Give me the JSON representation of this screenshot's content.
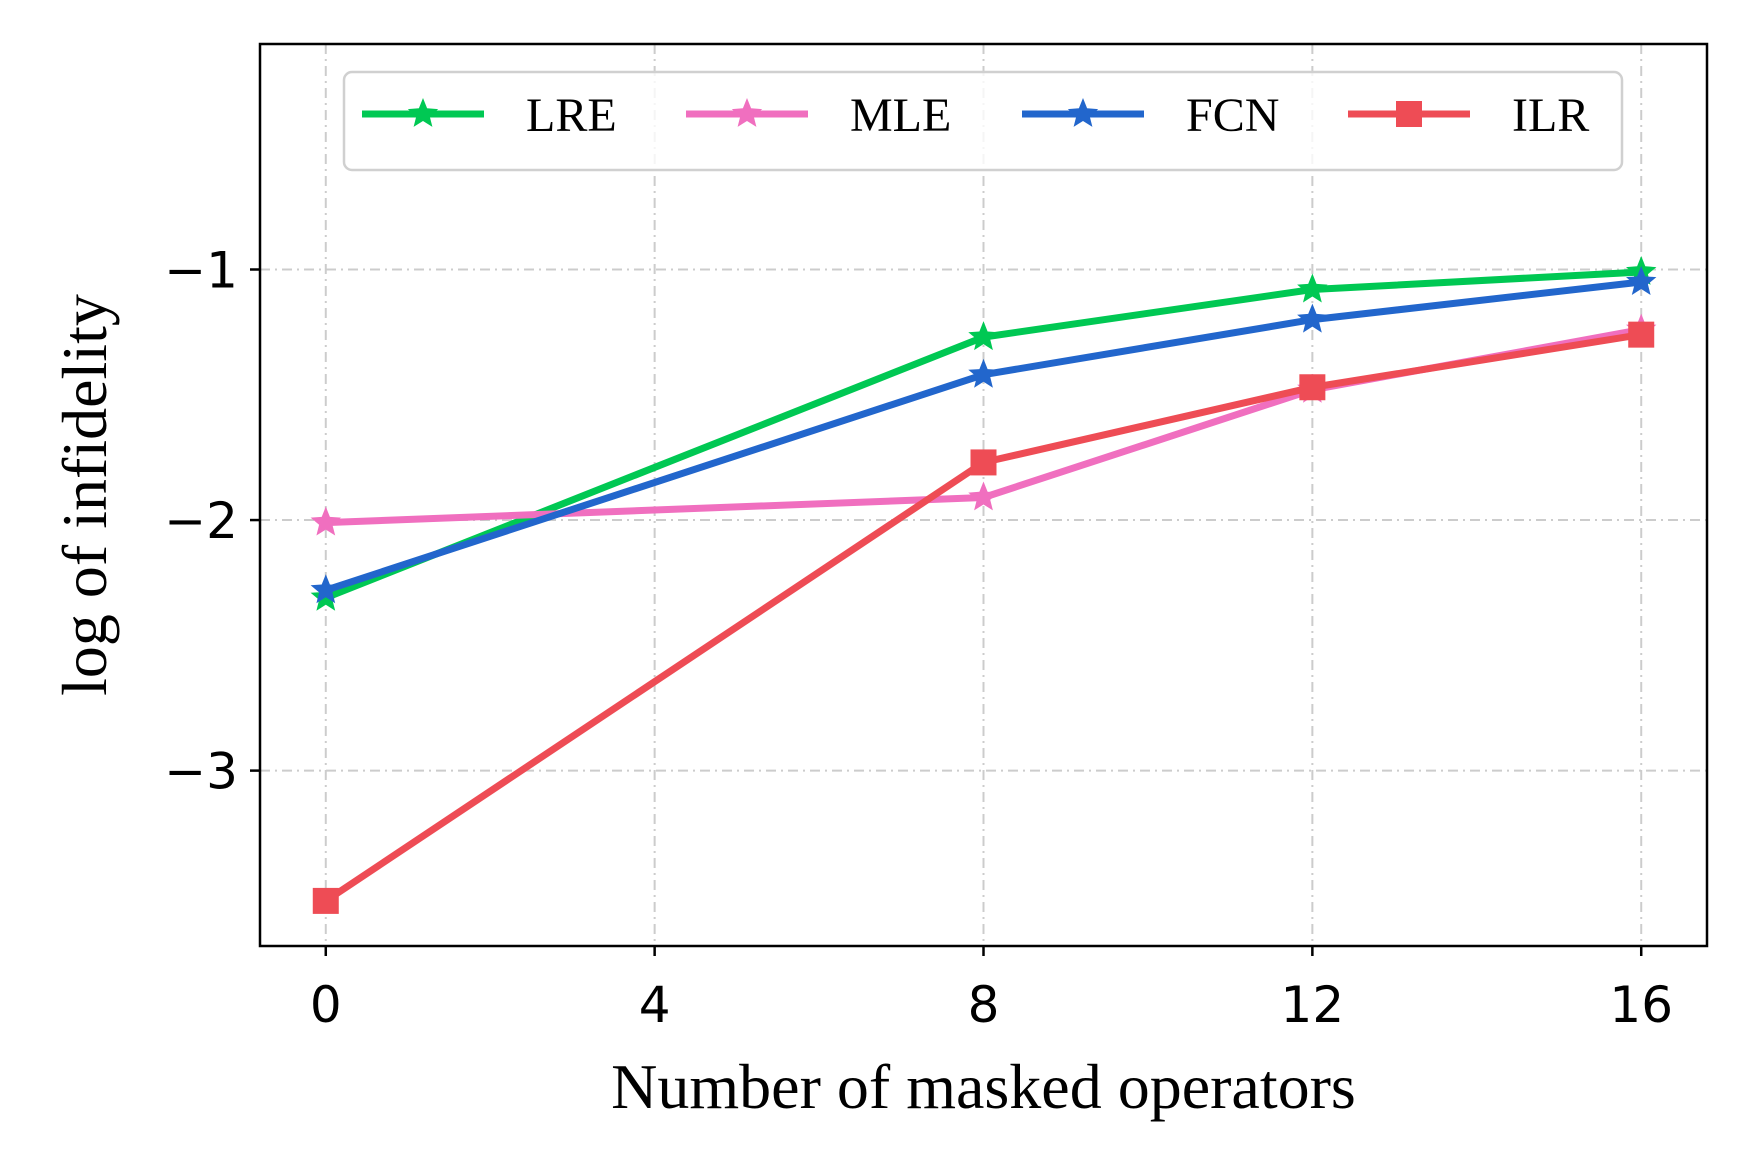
{
  "chart_data": {
    "type": "line",
    "xlabel": "Number of masked operators",
    "ylabel": "log of infidelity",
    "x": [
      0,
      8,
      12,
      16
    ],
    "xticks": [
      0,
      4,
      8,
      12,
      16
    ],
    "xtick_labels": [
      "0",
      "4",
      "8",
      "12",
      "16"
    ],
    "yticks": [
      -1,
      -2,
      -3
    ],
    "ytick_labels": [
      "−1",
      "−2",
      "−3"
    ],
    "xlim": [
      -0.8,
      16.8
    ],
    "ylim": [
      -3.7,
      -0.1
    ],
    "grid": true,
    "legend_position": "top",
    "series": [
      {
        "name": "LRE",
        "color": "#00c853",
        "marker": "star",
        "values": [
          -2.31,
          -1.27,
          -1.08,
          -1.01
        ]
      },
      {
        "name": "MLE",
        "color": "#f06fbf",
        "marker": "star",
        "values": [
          -2.01,
          -1.91,
          -1.48,
          -1.24
        ]
      },
      {
        "name": "FCN",
        "color": "#2266cc",
        "marker": "star",
        "values": [
          -2.28,
          -1.42,
          -1.2,
          -1.05
        ]
      },
      {
        "name": "ILR",
        "color": "#ee4c55",
        "marker": "square",
        "values": [
          -3.52,
          -1.77,
          -1.47,
          -1.26
        ]
      }
    ]
  }
}
